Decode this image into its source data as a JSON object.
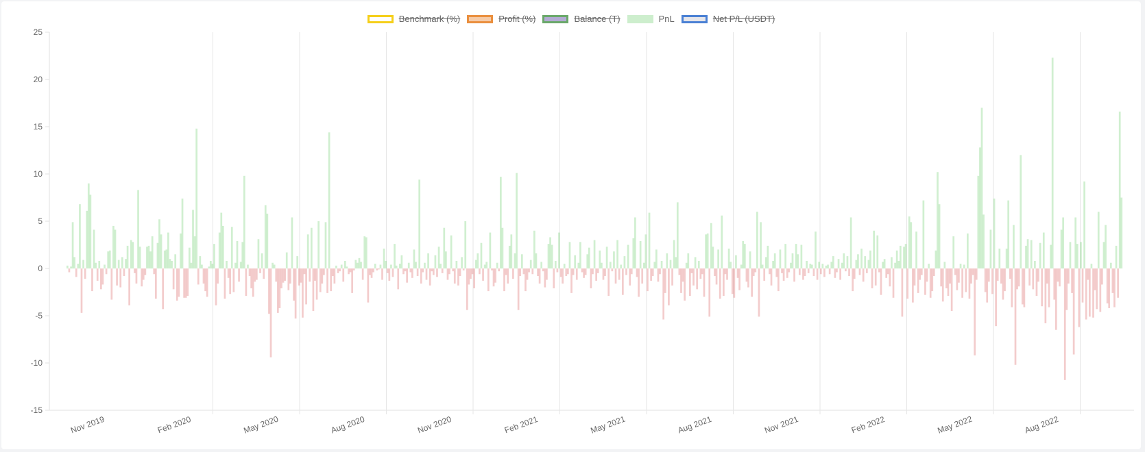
{
  "legend": [
    {
      "label": "Benchmark (%)",
      "border": "#f5cf1a",
      "fill": "#ffffff",
      "hidden": true
    },
    {
      "label": "Profit (%)",
      "border": "#ea8f3e",
      "fill": "#f6cba7",
      "hidden": true
    },
    {
      "label": "Balance (T)",
      "border": "#6aa86a",
      "fill": "#b3abd4",
      "hidden": true
    },
    {
      "label": "PnL",
      "border": "#cdeecd",
      "fill": "#cdeecd",
      "hidden": false
    },
    {
      "label": "Net P/L (USDT)",
      "border": "#4a80d4",
      "fill": "#e6e6ea",
      "hidden": true
    }
  ],
  "chart_data": {
    "type": "bar",
    "ylim": [
      -15,
      25
    ],
    "yticks": [
      25,
      20,
      15,
      10,
      5,
      0,
      -5,
      -10,
      -15
    ],
    "xticks": [
      "Nov 2019",
      "Feb 2020",
      "May 2020",
      "Aug 2020",
      "Nov 2020",
      "Feb 2021",
      "May 2021",
      "Aug 2021",
      "Nov 2021",
      "Feb 2022",
      "May 2022",
      "Aug 2022"
    ],
    "colors": {
      "positive": "rgba(120,210,120,0.35)",
      "negative": "rgba(220,110,110,0.35)"
    },
    "series": [
      {
        "values": [
          0.3,
          -0.4,
          0.2,
          4.9,
          1.2,
          -0.9,
          0.5,
          6.8,
          -4.7,
          0.9,
          -1.1,
          6.1,
          9.0,
          7.8,
          -2.4,
          4.1,
          0.6,
          -1.3,
          0.8,
          -2.2,
          -1.7,
          0.4,
          -0.6,
          1.8,
          1.9,
          -3.3,
          4.5,
          4.1,
          -1.8,
          0.9,
          -2.0,
          1.2,
          -0.8,
          1.0,
          2.4,
          -3.9,
          3.0,
          2.8,
          -0.5,
          -1.6,
          8.3,
          2.3,
          -1.9,
          -1.2,
          -0.7,
          2.3,
          2.4,
          1.8,
          3.4,
          -0.6,
          -3.2,
          2.7,
          5.2,
          3.6,
          -4.3,
          1.9,
          2.0,
          3.8,
          1.0,
          0.8,
          -2.2,
          1.5,
          -3.4,
          -3.0,
          3.7,
          7.4,
          -3.1,
          -3.1,
          -2.9,
          2.2,
          0.6,
          6.2,
          3.4,
          14.8,
          -1.7,
          1.3,
          0.4,
          -1.6,
          -2.4,
          -3.0,
          0.2,
          0.8,
          0.5,
          2.6,
          -3.9,
          -1.6,
          3.8,
          5.9,
          4.5,
          -3.2,
          0.8,
          -1.0,
          -2.7,
          4.4,
          -2.5,
          0.6,
          2.9,
          -1.4,
          0.7,
          2.8,
          9.8,
          -2.9,
          0.4,
          -0.8,
          -2.1,
          -3.0,
          -1.4,
          -1.2,
          3.1,
          -0.5,
          1.6,
          -1.1,
          6.7,
          5.8,
          -4.8,
          -9.4,
          0.6,
          0.4,
          -1.4,
          -4.7,
          -4.2,
          -2.1,
          -1.5,
          -1.3,
          1.7,
          -2.3,
          -1.6,
          5.4,
          -3.4,
          -5.3,
          1.3,
          -1.8,
          -1.5,
          -5.2,
          -0.6,
          -3.8,
          3.6,
          -1.4,
          4.3,
          -4.5,
          -1.3,
          -3.3,
          5.0,
          -2.5,
          -1.6,
          -0.7,
          4.9,
          -2.6,
          14.4,
          -2.4,
          -0.8,
          -1.6,
          0.3,
          -0.5,
          -0.3,
          0.4,
          -1.4,
          0.8,
          0.2,
          -0.6,
          -0.4,
          -2.6,
          -0.2,
          0.9,
          0.6,
          1.1,
          0.7,
          -1.2,
          3.4,
          3.3,
          -3.6,
          -0.7,
          -1.0,
          -0.4,
          0.5,
          -0.2,
          -0.1,
          0.4,
          -1.2,
          2.1,
          0.8,
          -0.5,
          -1.3,
          0.4,
          -0.9,
          2.6,
          0.3,
          -2.2,
          0.5,
          1.4,
          -0.6,
          -0.3,
          -1.5,
          0.6,
          -0.4,
          -1.0,
          2.0,
          0.7,
          -0.8,
          9.4,
          -1.6,
          -0.4,
          0.6,
          -1.2,
          1.6,
          -1.8,
          -0.3,
          -0.7,
          1.4,
          -0.9,
          2.3,
          0.5,
          -0.5,
          4.3,
          1.8,
          -1.2,
          -0.6,
          3.5,
          -0.3,
          -1.6,
          0.8,
          -1.8,
          -0.8,
          1.2,
          -0.2,
          5.0,
          -4.4,
          -1.7,
          -1.1,
          -0.6,
          -2.1,
          0.9,
          1.6,
          -0.6,
          2.7,
          -1.3,
          0.4,
          0.7,
          -2.4,
          3.8,
          -0.2,
          -1.9,
          -1.5,
          0.6,
          -0.3,
          9.7,
          4.3,
          -2.4,
          -0.7,
          -1.6,
          2.4,
          3.6,
          -1.1,
          1.6,
          10.1,
          -4.4,
          -0.8,
          1.5,
          -0.6,
          -2.4,
          -1.2,
          -0.4,
          0.9,
          -0.6,
          4.0,
          1.6,
          -0.8,
          -1.6,
          0.7,
          -0.3,
          -2.0,
          -1.2,
          2.6,
          3.3,
          2.5,
          -2.1,
          0.8,
          -0.4,
          3.8,
          -0.9,
          -1.6,
          0.5,
          -0.8,
          -0.6,
          2.8,
          -2.6,
          -0.7,
          1.4,
          -1.2,
          0.6,
          2.8,
          -0.4,
          -1.0,
          -0.7,
          1.5,
          2.2,
          -2.1,
          -0.6,
          3.0,
          -1.3,
          -0.5,
          1.9,
          0.6,
          -1.2,
          -0.8,
          2.3,
          -2.9,
          0.7,
          -0.3,
          1.8,
          -1.6,
          3.0,
          -1.2,
          0.4,
          -2.8,
          1.3,
          -0.7,
          2.5,
          -1.8,
          -0.6,
          3.2,
          5.4,
          -0.9,
          -3.0,
          2.9,
          -1.6,
          0.6,
          3.6,
          -2.4,
          5.9,
          -1.3,
          -0.8,
          0.7,
          2.0,
          -1.4,
          -0.6,
          0.8,
          -5.4,
          -2.6,
          1.6,
          -3.9,
          0.9,
          -1.8,
          3.0,
          1.2,
          7.0,
          -0.7,
          -2.6,
          -1.4,
          -3.4,
          0.6,
          1.6,
          -2.9,
          -0.5,
          -1.8,
          1.2,
          -2.2,
          0.8,
          -1.1,
          -0.6,
          -3.0,
          3.6,
          3.7,
          -5.1,
          4.8,
          2.3,
          -0.8,
          -1.7,
          2.0,
          -3.2,
          5.6,
          -2.9,
          -0.6,
          -1.2,
          2.1,
          0.7,
          -2.7,
          -3.1,
          1.4,
          -1.0,
          -2.3,
          0.4,
          2.9,
          2.6,
          -1.4,
          -2.0,
          1.8,
          -3.0,
          -0.8,
          -0.4,
          6.0,
          -5.1,
          4.9,
          0.4,
          -1.3,
          1.2,
          2.4,
          -0.6,
          -1.8,
          0.8,
          1.6,
          -0.9,
          -2.4,
          2.0,
          -0.5,
          -1.3,
          2.6,
          -1.0,
          -0.4,
          0.6,
          1.6,
          -1.4,
          2.6,
          1.5,
          -0.7,
          2.5,
          -1.2,
          -0.8,
          0.8,
          -0.5,
          0.5,
          0.4,
          -0.8,
          3.9,
          -1.2,
          0.7,
          -0.6,
          0.5,
          -0.9,
          0.3,
          0.4,
          -0.6,
          0.7,
          1.3,
          -1.0,
          -0.4,
          1.0,
          -1.2,
          0.6,
          1.6,
          -0.3,
          1.3,
          -0.8,
          5.4,
          -2.4,
          -1.1,
          0.9,
          1.5,
          -0.7,
          2.1,
          -1.4,
          1.3,
          -0.5,
          0.9,
          1.9,
          -2.1,
          4.0,
          -1.8,
          3.5,
          -0.4,
          -2.8,
          0.7,
          1.0,
          -1.0,
          -0.6,
          -1.9,
          1.2,
          -3.1,
          0.6,
          1.9,
          0.8,
          2.4,
          -5.1,
          2.3,
          2.6,
          -3.2,
          5.5,
          4.9,
          -3.6,
          -1.8,
          3.9,
          -2.6,
          -1.2,
          -0.7,
          7.2,
          -2.8,
          -1.4,
          0.5,
          -3.1,
          -2.4,
          -0.8,
          1.9,
          10.2,
          6.8,
          -1.9,
          -3.5,
          0.7,
          -2.1,
          -2.9,
          -1.6,
          -4.5,
          3.4,
          -0.7,
          -2.3,
          -1.5,
          0.5,
          -3.1,
          0.4,
          -2.5,
          3.7,
          -3.2,
          -1.6,
          -0.7,
          -9.2,
          -1.2,
          9.8,
          12.8,
          17.0,
          5.7,
          -2.5,
          -3.6,
          -1.4,
          4.1,
          -2.7,
          7.4,
          -6.1,
          -1.3,
          2.1,
          -1.6,
          -3.3,
          -2.4,
          2.1,
          7.2,
          -1.1,
          -4.1,
          4.6,
          -10.2,
          -2.2,
          -1.9,
          12.0,
          -3.8,
          -4.1,
          2.4,
          3.1,
          -1.8,
          3.0,
          -2.2,
          0.8,
          -2.9,
          -1.4,
          2.7,
          -4.0,
          3.8,
          -5.8,
          -1.6,
          -4.1,
          2.5,
          22.3,
          -3.3,
          -6.5,
          -1.4,
          -1.9,
          4.1,
          5.4,
          -11.8,
          -4.4,
          -1.6,
          2.8,
          -2.6,
          -9.1,
          5.4,
          2.6,
          -6.2,
          2.8,
          -3.6,
          9.2,
          -5.4,
          -1.2,
          -5.1,
          0.5,
          -5.2,
          -2.3,
          -4.3,
          6.0,
          -4.6,
          -1.7,
          2.8,
          4.6,
          -3.7,
          -4.2,
          0.6,
          -2.6,
          -4.1,
          2.4,
          -3.1,
          16.6,
          7.5
        ]
      }
    ]
  }
}
